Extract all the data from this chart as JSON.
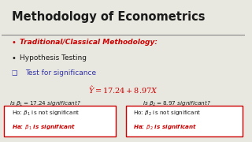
{
  "title": "Methodology of Econometrics",
  "bg_color": "#e8e8e0",
  "title_color": "#1a1a1a",
  "line_color": "#888888",
  "bullet1": "Traditional/Classical Methodology:",
  "bullet1_color": "#cc0000",
  "bullet2": "Hypothesis Testing",
  "bullet2_color": "#1a1a1a",
  "checkbox": "Test for significance",
  "checkbox_color": "#3333aa",
  "eq_color": "#cc0000",
  "q_color": "#1a1a1a",
  "box_text_color_ho": "#1a1a1a",
  "box_text_color_ha": "#cc0000",
  "box_border_color": "#cc0000",
  "box_bg_color": "#ffffff"
}
